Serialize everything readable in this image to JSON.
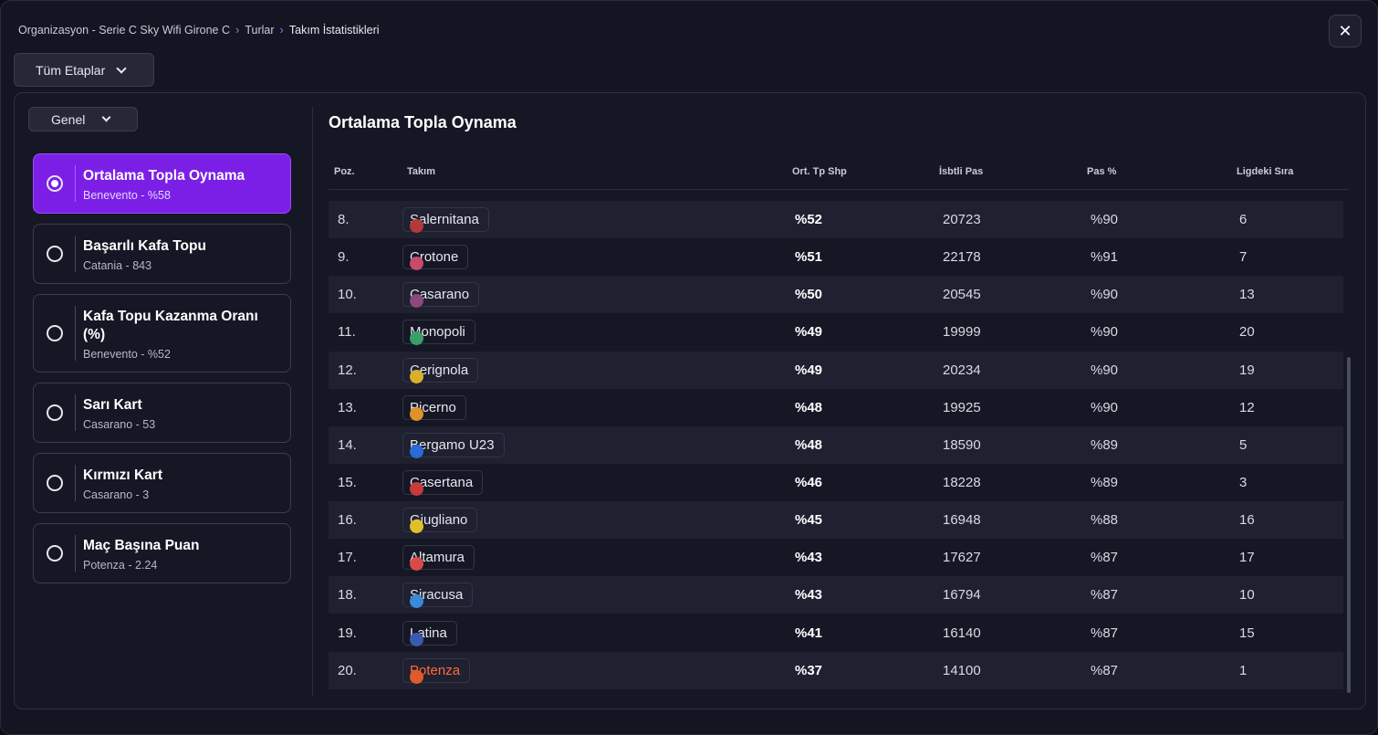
{
  "breadcrumb": {
    "org": "Organizasyon - Serie C Sky Wifi Girone C",
    "rounds": "Turlar",
    "current": "Takım İstatistikleri"
  },
  "stage_select": "Tüm Etaplar",
  "genel_select": "Genel",
  "categories": [
    {
      "title": "Ortalama Topla Oynama",
      "sub": "Benevento - %58"
    },
    {
      "title": "Başarılı Kafa Topu",
      "sub": "Catania - 843"
    },
    {
      "title": "Kafa Topu Kazanma Oranı (%)",
      "sub": "Benevento - %52"
    },
    {
      "title": "Sarı Kart",
      "sub": "Casarano - 53"
    },
    {
      "title": "Kırmızı Kart",
      "sub": "Casarano - 3"
    },
    {
      "title": "Maç Başına Puan",
      "sub": "Potenza - 2.24"
    }
  ],
  "table": {
    "title": "Ortalama Topla Oynama",
    "headers": {
      "pos": "Poz.",
      "team": "Takım",
      "possession": "Ort. Tp Shp",
      "passes": "İsbtli Pas",
      "pass_pct": "Pas %",
      "league_rank": "Ligdeki Sıra"
    },
    "rows": [
      {
        "pos": "8.",
        "team": "Salernitana",
        "possession": "%52",
        "passes": "20723",
        "pass_pct": "%90",
        "rank": "6",
        "color": "#b33a3a"
      },
      {
        "pos": "9.",
        "team": "Crotone",
        "possession": "%51",
        "passes": "22178",
        "pass_pct": "%91",
        "rank": "7",
        "color": "#c94a6a"
      },
      {
        "pos": "10.",
        "team": "Casarano",
        "possession": "%50",
        "passes": "20545",
        "pass_pct": "%90",
        "rank": "13",
        "color": "#8a4a7a"
      },
      {
        "pos": "11.",
        "team": "Monopoli",
        "possession": "%49",
        "passes": "19999",
        "pass_pct": "%90",
        "rank": "20",
        "color": "#3aa06a"
      },
      {
        "pos": "12.",
        "team": "Cerignola",
        "possession": "%49",
        "passes": "20234",
        "pass_pct": "%90",
        "rank": "19",
        "color": "#d9b02a"
      },
      {
        "pos": "13.",
        "team": "Picerno",
        "possession": "%48",
        "passes": "19925",
        "pass_pct": "%90",
        "rank": "12",
        "color": "#e0922a"
      },
      {
        "pos": "14.",
        "team": "Bergamo U23",
        "possession": "%48",
        "passes": "18590",
        "pass_pct": "%89",
        "rank": "5",
        "color": "#2a6ad9"
      },
      {
        "pos": "15.",
        "team": "Casertana",
        "possession": "%46",
        "passes": "18228",
        "pass_pct": "%89",
        "rank": "3",
        "color": "#c93a3a"
      },
      {
        "pos": "16.",
        "team": "Giugliano",
        "possession": "%45",
        "passes": "16948",
        "pass_pct": "%88",
        "rank": "16",
        "color": "#e0c02a"
      },
      {
        "pos": "17.",
        "team": "Altamura",
        "possession": "%43",
        "passes": "17627",
        "pass_pct": "%87",
        "rank": "17",
        "color": "#d94a4a"
      },
      {
        "pos": "18.",
        "team": "Siracusa",
        "possession": "%43",
        "passes": "16794",
        "pass_pct": "%87",
        "rank": "10",
        "color": "#3a8ad9"
      },
      {
        "pos": "19.",
        "team": "Latina",
        "possession": "%41",
        "passes": "16140",
        "pass_pct": "%87",
        "rank": "15",
        "color": "#3a5ab0"
      },
      {
        "pos": "20.",
        "team": "Potenza",
        "possession": "%37",
        "passes": "14100",
        "pass_pct": "%87",
        "rank": "1",
        "color": "#e05a2a",
        "highlight": true
      }
    ]
  }
}
